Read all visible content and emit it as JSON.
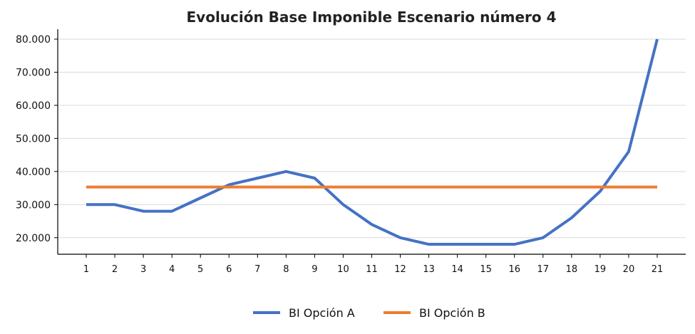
{
  "chart_data": {
    "type": "line",
    "title": "Evolución Base Imponible Escenario número 4",
    "xlabel": "",
    "ylabel": "",
    "x": [
      1,
      2,
      3,
      4,
      5,
      6,
      7,
      8,
      9,
      10,
      11,
      12,
      13,
      14,
      15,
      16,
      17,
      18,
      19,
      20,
      21
    ],
    "ylim": [
      15000,
      83000
    ],
    "y_ticks": [
      20000,
      30000,
      40000,
      50000,
      60000,
      70000,
      80000
    ],
    "y_tick_labels": [
      "20.000",
      "30.000",
      "40.000",
      "50.000",
      "60.000",
      "70.000",
      "80.000"
    ],
    "x_tick_labels": [
      "1",
      "2",
      "3",
      "4",
      "5",
      "6",
      "7",
      "8",
      "9",
      "10",
      "11",
      "12",
      "13",
      "14",
      "15",
      "16",
      "17",
      "18",
      "19",
      "20",
      "21"
    ],
    "grid": "horizontal",
    "legend": "bottom",
    "series": [
      {
        "name": "BI Opción A",
        "color": "#4472c4",
        "values": [
          30000,
          30000,
          28000,
          28000,
          32000,
          36000,
          38000,
          40000,
          38000,
          30000,
          24000,
          20000,
          18000,
          18000,
          18000,
          18000,
          20000,
          26000,
          34000,
          46000,
          80000
        ]
      },
      {
        "name": "BI Opción B",
        "color": "#ed7d31",
        "values": [
          35300,
          35300,
          35300,
          35300,
          35300,
          35300,
          35300,
          35300,
          35300,
          35300,
          35300,
          35300,
          35300,
          35300,
          35300,
          35300,
          35300,
          35300,
          35300,
          35300,
          35300
        ]
      }
    ]
  }
}
